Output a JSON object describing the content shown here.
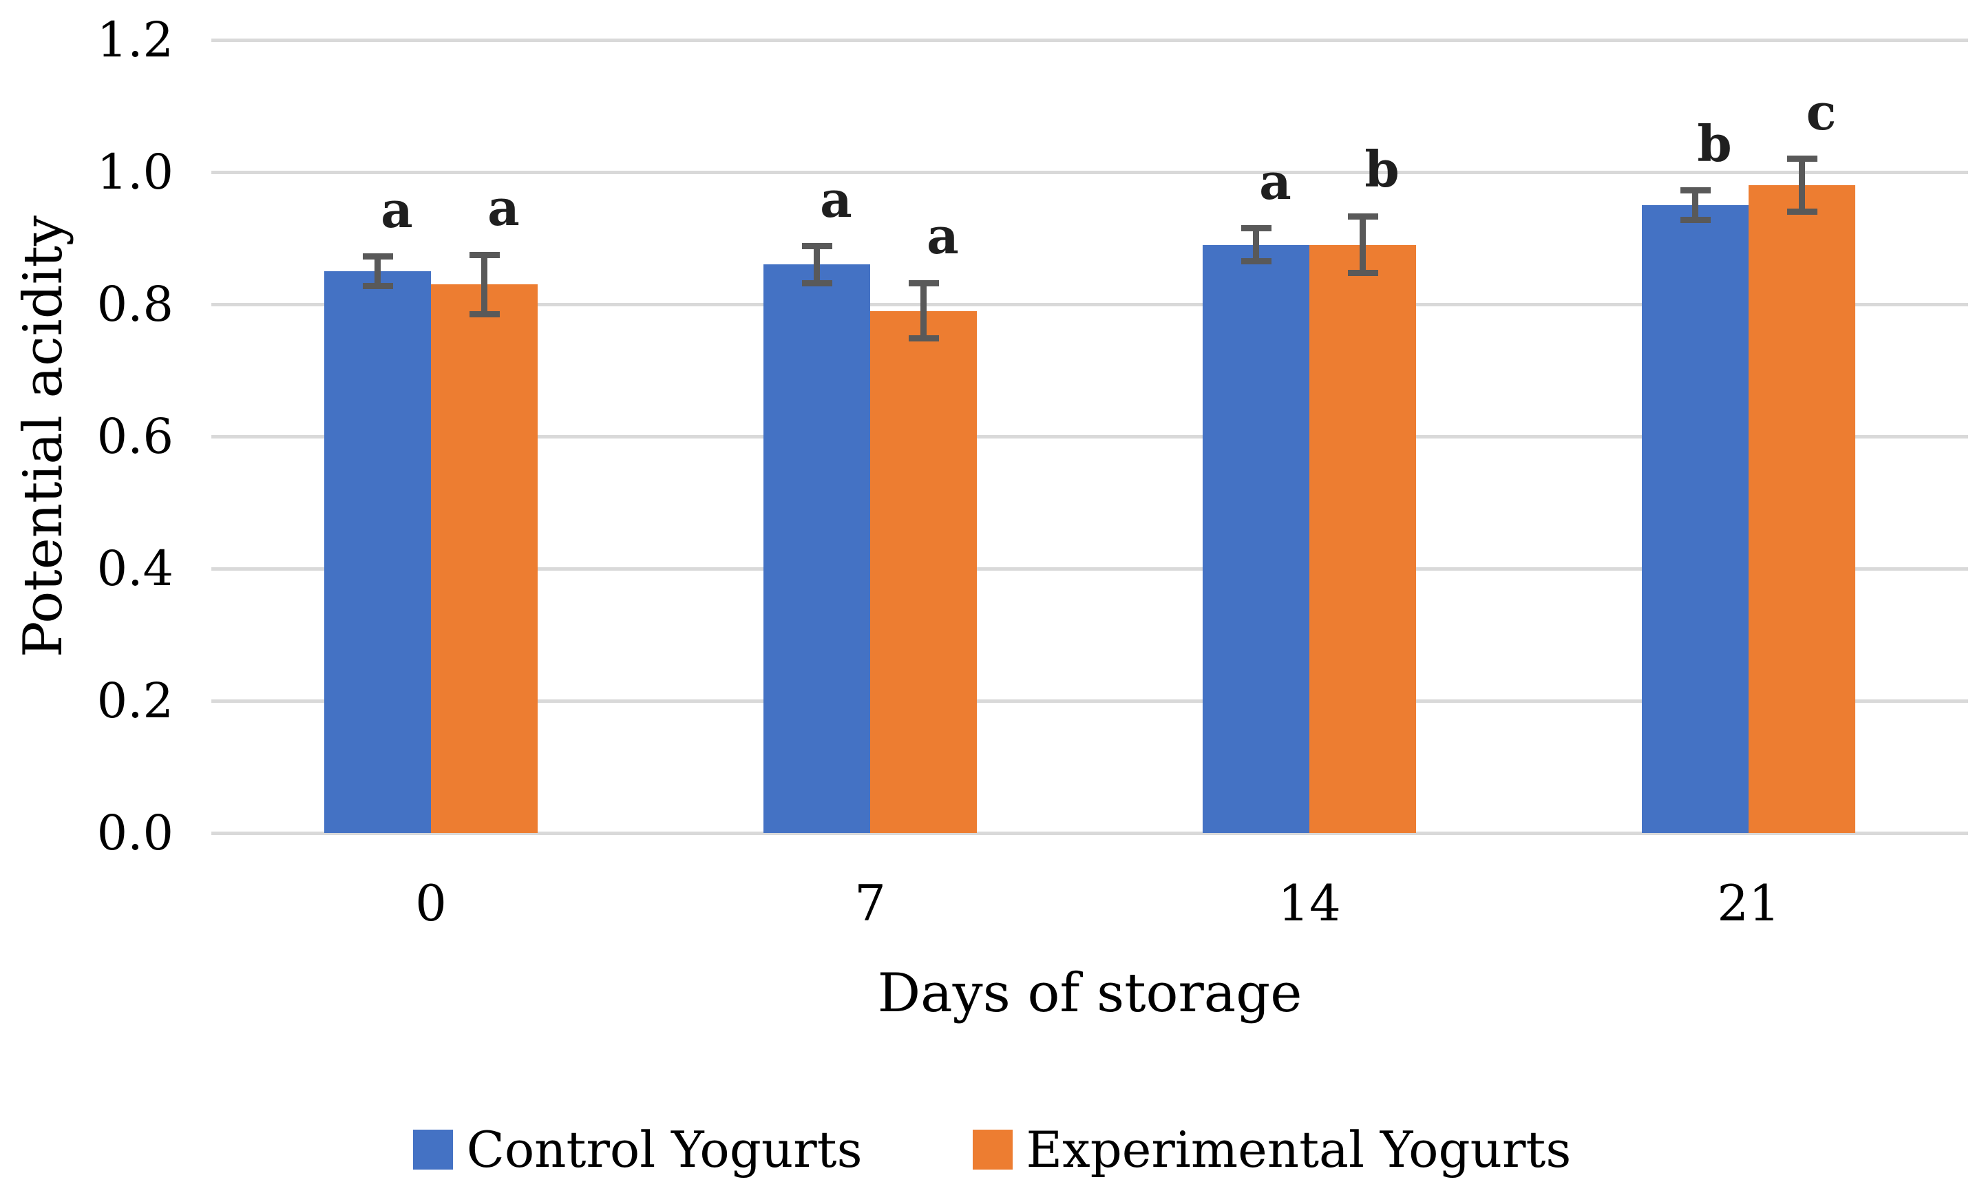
{
  "chart_data": {
    "type": "bar",
    "title": "",
    "xlabel": "Days of storage",
    "ylabel": "Potential acidity",
    "categories": [
      "0",
      "7",
      "14",
      "21"
    ],
    "series": [
      {
        "name": "Control Yogurts",
        "color": "#4472C4",
        "values": [
          0.85,
          0.86,
          0.89,
          0.95
        ],
        "errors": [
          0.022,
          0.028,
          0.025,
          0.022
        ],
        "letters": [
          "a",
          "a",
          "a",
          "b"
        ]
      },
      {
        "name": "Experimental Yogurts",
        "color": "#ED7D31",
        "values": [
          0.83,
          0.79,
          0.89,
          0.98
        ],
        "errors": [
          0.045,
          0.042,
          0.043,
          0.04
        ],
        "letters": [
          "a",
          "a",
          "b",
          "c"
        ]
      }
    ],
    "y_ticks": [
      "1.2",
      "1.0",
      "0.8",
      "0.6",
      "0.4",
      "0.2",
      "0.0"
    ],
    "ylim": [
      0.0,
      1.2
    ],
    "grid": true,
    "legend_position": "bottom",
    "gridline_color": "#D9D9D9",
    "error_bar_color": "#595959"
  }
}
